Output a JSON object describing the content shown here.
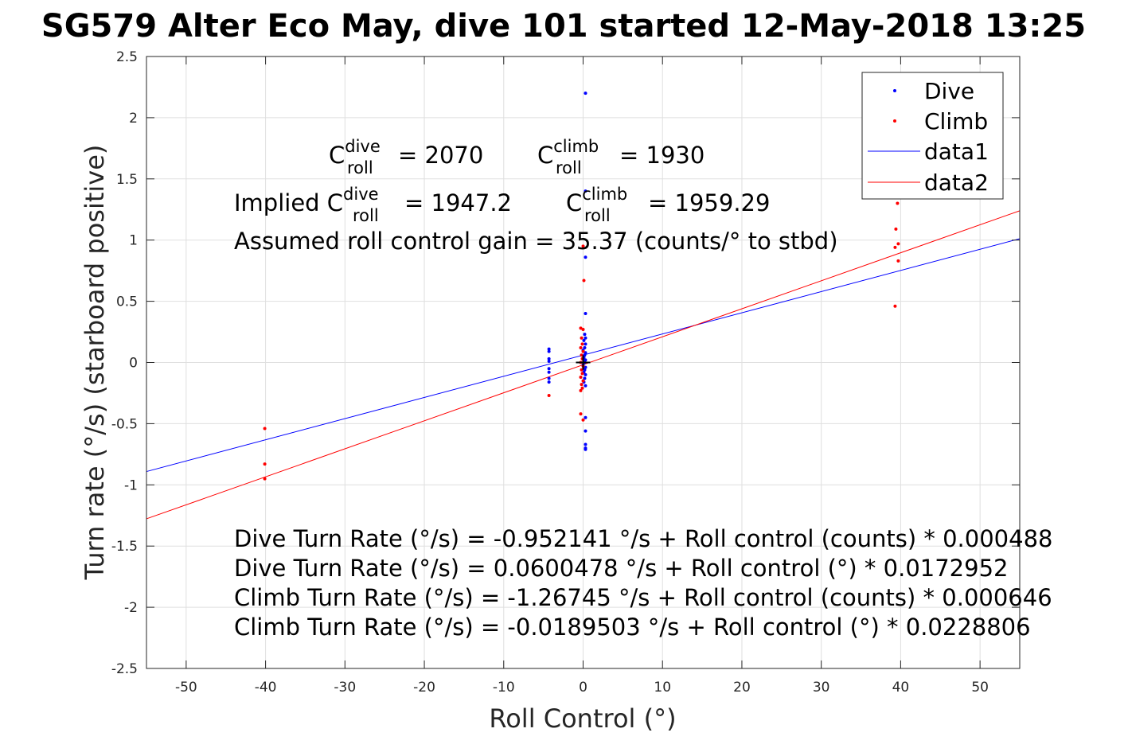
{
  "chart_data": {
    "type": "scatter",
    "title": "SG579 Alter Eco May, dive 101 started 12-May-2018 13:25",
    "xlabel": "Roll Control (°)",
    "ylabel": "Turn rate (°/s) (starboard positive)",
    "xlim": [
      -55,
      55
    ],
    "ylim": [
      -2.5,
      2.5
    ],
    "xticks": [
      -50,
      -40,
      -30,
      -20,
      -10,
      0,
      10,
      20,
      30,
      40,
      50
    ],
    "yticks": [
      -2.5,
      -2,
      -1.5,
      -1,
      -0.5,
      0,
      0.5,
      1,
      1.5,
      2,
      2.5
    ],
    "ytick_labels": [
      "-2.5",
      "-2",
      "-1.5",
      "-1",
      "-0.5",
      "0",
      "0.5",
      "1",
      "1.5",
      "2",
      "2.5"
    ],
    "grid": true,
    "legend_position": "top-right",
    "colors": {
      "dive": "#0000ff",
      "climb": "#ff0000",
      "zero_marker": "#000000"
    },
    "series": [
      {
        "name": "Dive",
        "kind": "scatter",
        "color": "#0000ff",
        "points": [
          [
            0.3,
            2.2
          ],
          [
            0.3,
            1.4
          ],
          [
            0.3,
            0.86
          ],
          [
            0.3,
            0.4
          ],
          [
            0.2,
            0.23
          ],
          [
            0.3,
            0.2
          ],
          [
            0.1,
            0.18
          ],
          [
            0.3,
            0.15
          ],
          [
            0.2,
            0.12
          ],
          [
            0.0,
            0.1
          ],
          [
            0.3,
            0.08
          ],
          [
            0.2,
            0.06
          ],
          [
            0.1,
            0.04
          ],
          [
            0.3,
            0.02
          ],
          [
            0.2,
            0.0
          ],
          [
            0.0,
            -0.02
          ],
          [
            0.3,
            -0.04
          ],
          [
            0.2,
            -0.06
          ],
          [
            0.1,
            -0.08
          ],
          [
            0.3,
            -0.1
          ],
          [
            0.2,
            -0.13
          ],
          [
            0.1,
            -0.16
          ],
          [
            0.3,
            -0.19
          ],
          [
            0.3,
            -0.45
          ],
          [
            0.3,
            -0.56
          ],
          [
            0.3,
            -0.67
          ],
          [
            0.3,
            -0.7
          ],
          [
            0.3,
            -0.71
          ],
          [
            -4.3,
            0.11
          ],
          [
            -4.3,
            0.09
          ],
          [
            -4.3,
            0.03
          ],
          [
            -4.3,
            0.01
          ],
          [
            -4.3,
            -0.05
          ],
          [
            -4.3,
            -0.08
          ],
          [
            -4.3,
            -0.13
          ],
          [
            -4.3,
            -0.16
          ]
        ]
      },
      {
        "name": "Climb",
        "kind": "scatter",
        "color": "#ff0000",
        "points": [
          [
            -40.1,
            -0.54
          ],
          [
            -40.1,
            -0.83
          ],
          [
            -40.1,
            -0.95
          ],
          [
            -4.3,
            -0.27
          ],
          [
            0.0,
            0.95
          ],
          [
            0.1,
            0.67
          ],
          [
            -0.3,
            0.28
          ],
          [
            0.0,
            0.27
          ],
          [
            -0.2,
            0.2
          ],
          [
            -0.1,
            0.15
          ],
          [
            -0.3,
            0.12
          ],
          [
            0.0,
            0.09
          ],
          [
            -0.2,
            0.06
          ],
          [
            -0.1,
            0.03
          ],
          [
            -0.3,
            0.0
          ],
          [
            0.0,
            -0.03
          ],
          [
            -0.2,
            -0.06
          ],
          [
            -0.1,
            -0.09
          ],
          [
            -0.3,
            -0.12
          ],
          [
            0.0,
            -0.15
          ],
          [
            -0.2,
            -0.18
          ],
          [
            -0.1,
            -0.21
          ],
          [
            -0.3,
            -0.23
          ],
          [
            -0.3,
            -0.42
          ],
          [
            0.0,
            -0.47
          ],
          [
            39.6,
            1.3
          ],
          [
            39.4,
            1.09
          ],
          [
            39.7,
            0.97
          ],
          [
            39.3,
            0.94
          ],
          [
            39.7,
            0.83
          ],
          [
            39.3,
            0.46
          ]
        ]
      },
      {
        "name": "data1",
        "kind": "line",
        "color": "#0000ff",
        "slope": 0.0172952,
        "intercept": 0.0600478
      },
      {
        "name": "data2",
        "kind": "line",
        "color": "#ff0000",
        "slope": 0.0228806,
        "intercept": -0.0189503
      }
    ],
    "zero_marker": [
      0,
      0
    ],
    "annotations": {
      "c_dive_base": "C",
      "c_dive_sup": "dive",
      "c_dive_sub": "roll",
      "c_dive_value": "= 2070",
      "c_climb_base": "C",
      "c_climb_sup": "climb",
      "c_climb_sub": "roll",
      "c_climb_value": "= 1930",
      "implied_prefix": "Implied C",
      "implied_dive_sup": "dive",
      "implied_dive_sub": "roll",
      "implied_dive_value": "= 1947.2",
      "implied_climb_base": "C",
      "implied_climb_sup": "climb",
      "implied_climb_sub": "roll",
      "implied_climb_value": "= 1959.29",
      "gain": "Assumed roll control gain = 35.37 (counts/° to stbd)",
      "eq1": "Dive Turn Rate (°/s) = -0.952141 °/s + Roll control (counts) * 0.000488",
      "eq2": "Dive Turn Rate (°/s) = 0.0600478 °/s + Roll control (°) * 0.0172952",
      "eq3": "Climb Turn Rate (°/s) = -1.26745 °/s + Roll control (counts) * 0.000646",
      "eq4": "Climb Turn Rate (°/s) = -0.0189503 °/s + Roll control (°) * 0.0228806"
    }
  }
}
